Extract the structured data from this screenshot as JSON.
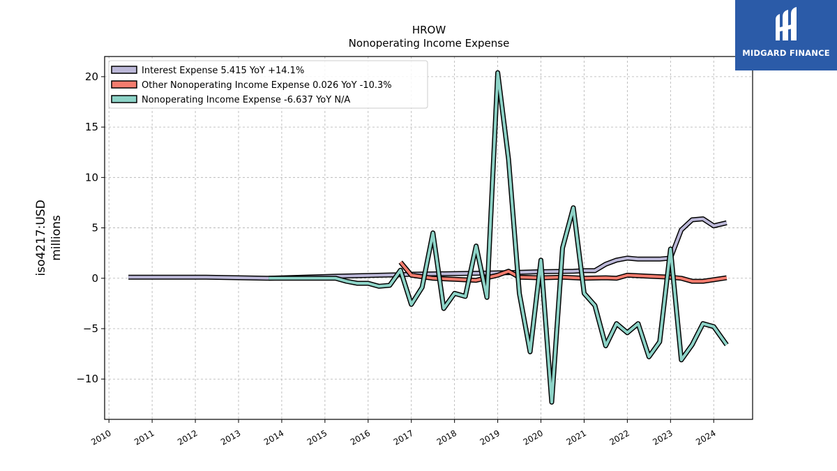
{
  "brand": {
    "name": "MIDGARD FINANCE",
    "icon": "midgard-logo-icon",
    "bg_color": "#2b5ba8"
  },
  "chart_data": {
    "type": "line",
    "title": "HROW",
    "subtitle": "Nonoperating Income Expense",
    "ylabel_line1": "iso4217:USD",
    "ylabel_line2": "millions",
    "xlabel": "",
    "xlim": [
      2009.9,
      2024.9
    ],
    "ylim": [
      -14,
      22
    ],
    "x_ticks": [
      2010,
      2011,
      2012,
      2013,
      2014,
      2015,
      2016,
      2017,
      2018,
      2019,
      2020,
      2021,
      2022,
      2023,
      2024
    ],
    "x_tick_labels": [
      "2010",
      "2011",
      "2012",
      "2013",
      "2014",
      "2015",
      "2016",
      "2017",
      "2018",
      "2019",
      "2020",
      "2021",
      "2022",
      "2023",
      "2024"
    ],
    "y_ticks": [
      -10,
      -5,
      0,
      5,
      10,
      15,
      20
    ],
    "y_tick_labels": [
      "−10",
      "−5",
      "0",
      "5",
      "10",
      "15",
      "20"
    ],
    "grid": true,
    "legend_position": "top-left",
    "series": [
      {
        "name": "Interest Expense  5.415 YoY +14.1%",
        "color": "#bcb8d8",
        "points": [
          [
            2010.45,
            0.1
          ],
          [
            2012.25,
            0.1
          ],
          [
            2013.7,
            0.0
          ],
          [
            2015.25,
            0.2
          ],
          [
            2016.75,
            0.35
          ],
          [
            2017.0,
            0.4
          ],
          [
            2018.5,
            0.5
          ],
          [
            2019.25,
            0.55
          ],
          [
            2020.0,
            0.65
          ],
          [
            2020.75,
            0.7
          ],
          [
            2021.0,
            0.75
          ],
          [
            2021.25,
            0.75
          ],
          [
            2021.5,
            1.4
          ],
          [
            2021.75,
            1.8
          ],
          [
            2022.0,
            2.0
          ],
          [
            2022.25,
            1.9
          ],
          [
            2022.75,
            1.9
          ],
          [
            2023.0,
            2.0
          ],
          [
            2023.25,
            4.8
          ],
          [
            2023.5,
            5.8
          ],
          [
            2023.75,
            5.9
          ],
          [
            2024.0,
            5.2
          ],
          [
            2024.3,
            5.5
          ]
        ]
      },
      {
        "name": "Other Nonoperating Income Expense  0.026 YoY -10.3%",
        "color": "#f47c6e",
        "points": [
          [
            2016.75,
            1.6
          ],
          [
            2017.0,
            0.3
          ],
          [
            2017.5,
            0.0
          ],
          [
            2018.0,
            -0.1
          ],
          [
            2018.5,
            -0.2
          ],
          [
            2019.0,
            0.3
          ],
          [
            2019.25,
            0.7
          ],
          [
            2019.5,
            0.1
          ],
          [
            2020.0,
            0.05
          ],
          [
            2020.5,
            0.1
          ],
          [
            2021.0,
            0.0
          ],
          [
            2021.5,
            0.05
          ],
          [
            2021.75,
            0.0
          ],
          [
            2022.0,
            0.3
          ],
          [
            2022.5,
            0.2
          ],
          [
            2023.0,
            0.1
          ],
          [
            2023.25,
            0.0
          ],
          [
            2023.5,
            -0.3
          ],
          [
            2023.75,
            -0.3
          ],
          [
            2024.0,
            -0.15
          ],
          [
            2024.3,
            0.05
          ]
        ]
      },
      {
        "name": "Nonoperating Income Expense  -6.637 YoY N/A",
        "color": "#8dd3c7",
        "points": [
          [
            2013.7,
            0.0
          ],
          [
            2015.25,
            0.0
          ],
          [
            2015.5,
            -0.3
          ],
          [
            2015.75,
            -0.5
          ],
          [
            2016.0,
            -0.5
          ],
          [
            2016.25,
            -0.8
          ],
          [
            2016.5,
            -0.7
          ],
          [
            2016.75,
            0.8
          ],
          [
            2017.0,
            -2.6
          ],
          [
            2017.25,
            -0.9
          ],
          [
            2017.5,
            4.5
          ],
          [
            2017.75,
            -3.0
          ],
          [
            2018.0,
            -1.5
          ],
          [
            2018.25,
            -1.8
          ],
          [
            2018.5,
            3.2
          ],
          [
            2018.75,
            -1.9
          ],
          [
            2019.0,
            20.4
          ],
          [
            2019.25,
            11.8
          ],
          [
            2019.5,
            -1.5
          ],
          [
            2019.75,
            -7.3
          ],
          [
            2020.0,
            1.8
          ],
          [
            2020.25,
            -12.3
          ],
          [
            2020.5,
            3.0
          ],
          [
            2020.75,
            7.0
          ],
          [
            2021.0,
            -1.5
          ],
          [
            2021.25,
            -2.7
          ],
          [
            2021.5,
            -6.7
          ],
          [
            2021.75,
            -4.5
          ],
          [
            2022.0,
            -5.4
          ],
          [
            2022.25,
            -4.5
          ],
          [
            2022.5,
            -7.8
          ],
          [
            2022.75,
            -6.3
          ],
          [
            2023.0,
            2.9
          ],
          [
            2023.25,
            -8.1
          ],
          [
            2023.5,
            -6.6
          ],
          [
            2023.75,
            -4.5
          ],
          [
            2024.0,
            -4.8
          ],
          [
            2024.3,
            -6.6
          ]
        ]
      }
    ]
  }
}
